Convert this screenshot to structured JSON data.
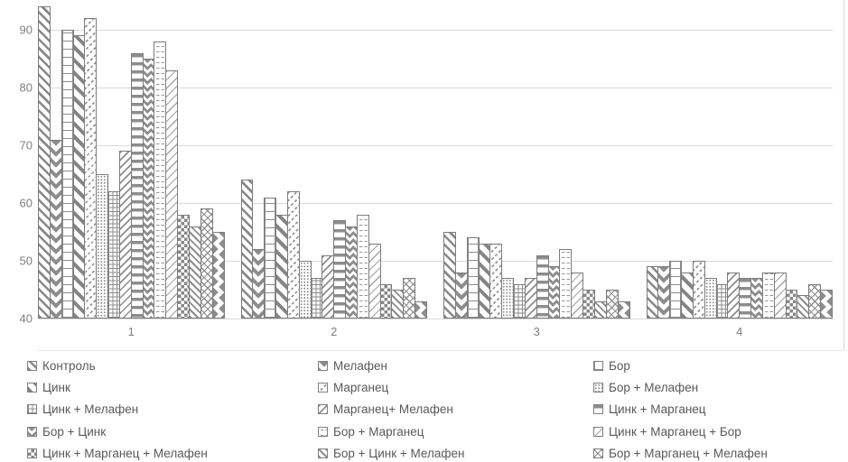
{
  "colors": {
    "background": "#ffffff",
    "bar_outline": "#7c7c7c",
    "pattern_stroke": "#8d8d8d",
    "gridline": "#d9d9d9",
    "axis_text": "#7f7f7f",
    "legend_text": "#595959"
  },
  "axes": {
    "x_labels": [
      "1",
      "2",
      "3",
      "4"
    ],
    "y_labels": [
      "40",
      "50",
      "60",
      "70",
      "80",
      "90"
    ]
  },
  "chart_data": {
    "type": "bar",
    "title": "",
    "xlabel": "",
    "ylabel": "",
    "categories": [
      "1",
      "2",
      "3",
      "4"
    ],
    "ylim": [
      40,
      95
    ],
    "yticks": [
      40,
      50,
      60,
      70,
      80,
      90
    ],
    "grid": true,
    "legend_position": "bottom",
    "bar_fill": "white-with-gray-pattern",
    "series": [
      {
        "name": "Контроль",
        "pattern": "diag-bold",
        "values": [
          94,
          64,
          55,
          49
        ]
      },
      {
        "name": "Мелафен",
        "pattern": "chevron-v",
        "values": [
          71,
          52,
          48,
          49
        ]
      },
      {
        "name": "Бор",
        "pattern": "grid-large",
        "values": [
          90,
          61,
          54,
          50
        ]
      },
      {
        "name": "Цинк",
        "pattern": "diag-heavy",
        "values": [
          89,
          58,
          53,
          48
        ]
      },
      {
        "name": "Марганец",
        "pattern": "diag-dash",
        "values": [
          92,
          62,
          53,
          50
        ]
      },
      {
        "name": "Бор + Мелафен",
        "pattern": "dots",
        "values": [
          65,
          50,
          47,
          47
        ]
      },
      {
        "name": "Цинк + Мелафен",
        "pattern": "grid-fine",
        "values": [
          62,
          47,
          46,
          46
        ]
      },
      {
        "name": "Марганец+ Мелафен",
        "pattern": "diag-thin",
        "values": [
          69,
          51,
          47,
          48
        ]
      },
      {
        "name": "Цинк + Марганец",
        "pattern": "horiz-bold",
        "values": [
          86,
          57,
          51,
          47
        ]
      },
      {
        "name": "Бор + Цинк",
        "pattern": "herringbone",
        "values": [
          85,
          56,
          49,
          47
        ]
      },
      {
        "name": "Бор + Марганец",
        "pattern": "dash-rows",
        "values": [
          88,
          58,
          52,
          48
        ]
      },
      {
        "name": "Цинк + Марганец + Бор",
        "pattern": "diag-light",
        "values": [
          83,
          53,
          48,
          48
        ]
      },
      {
        "name": "Цинк + Марганец + Мелафен",
        "pattern": "checker",
        "values": [
          58,
          46,
          45,
          45
        ]
      },
      {
        "name": "Бор + Цинк + Мелафен",
        "pattern": "diag-narrow",
        "values": [
          56,
          45,
          43,
          44
        ]
      },
      {
        "name": "Бор + Марганец + Мелафен",
        "pattern": "crosshatch",
        "values": [
          59,
          47,
          45,
          46
        ]
      },
      {
        "name": "",
        "pattern": "zigzag-h",
        "values": [
          55,
          43,
          43,
          45
        ]
      }
    ]
  },
  "legend": {
    "items": [
      {
        "label": "Контроль",
        "pattern": "diag-bold"
      },
      {
        "label": "Мелафен",
        "pattern": "chevron-v"
      },
      {
        "label": "Бор",
        "pattern": "grid-large"
      },
      {
        "label": "Цинк",
        "pattern": "diag-heavy"
      },
      {
        "label": "Марганец",
        "pattern": "diag-dash"
      },
      {
        "label": "Бор + Мелафен",
        "pattern": "dots"
      },
      {
        "label": "Цинк + Мелафен",
        "pattern": "grid-fine"
      },
      {
        "label": "Марганец+ Мелафен",
        "pattern": "diag-thin"
      },
      {
        "label": "Цинк + Марганец",
        "pattern": "horiz-bold"
      },
      {
        "label": "Бор + Цинк",
        "pattern": "herringbone"
      },
      {
        "label": "Бор + Марганец",
        "pattern": "dash-rows"
      },
      {
        "label": "Цинк + Марганец + Бор",
        "pattern": "diag-light"
      },
      {
        "label": "Цинк + Марганец + Мелафен",
        "pattern": "checker"
      },
      {
        "label": "Бор + Цинк + Мелафен",
        "pattern": "diag-narrow"
      },
      {
        "label": "Бор + Марганец + Мелафен",
        "pattern": "crosshatch"
      }
    ]
  }
}
